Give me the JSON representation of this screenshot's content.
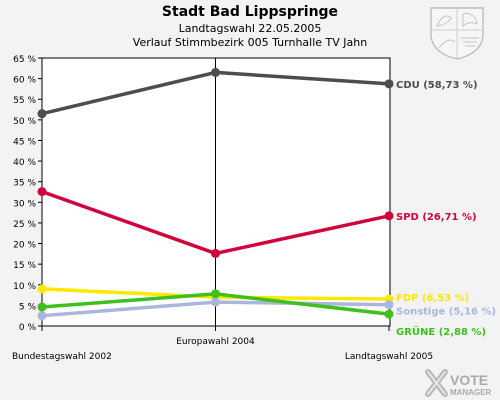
{
  "title": "Stadt Bad Lippspringe",
  "subtitle1": "Landtagswahl 22.05.2005",
  "subtitle2": "Verlauf Stimmbezirk 005 Turnhalle TV Jahn",
  "brand": {
    "line1": "VOTE",
    "line2": "MANAGER"
  },
  "chart_data": {
    "type": "line",
    "x": [
      "Bundestagswahl 2002",
      "Europawahl 2004",
      "Landtagswahl 2005"
    ],
    "ylim": [
      0,
      65
    ],
    "yticks": [
      0,
      5,
      10,
      15,
      20,
      25,
      30,
      35,
      40,
      45,
      50,
      55,
      60,
      65
    ],
    "ytick_labels": [
      "0 %",
      "5 %",
      "10 %",
      "15 %",
      "20 %",
      "25 %",
      "30 %",
      "35 %",
      "40 %",
      "45 %",
      "50 %",
      "55 %",
      "60 %",
      "65 %"
    ],
    "grid": false,
    "series": [
      {
        "name": "CDU",
        "color": "#4d4d4d",
        "values": [
          51.5,
          61.5,
          58.73
        ],
        "label": "CDU (58,73 %)"
      },
      {
        "name": "SPD",
        "color": "#d0043c",
        "values": [
          32.6,
          17.6,
          26.71
        ],
        "label": "SPD (26,71 %)"
      },
      {
        "name": "FDP",
        "color": "#ffe800",
        "values": [
          9.0,
          7.0,
          6.53
        ],
        "label": "FDP (6,53 %)"
      },
      {
        "name": "Sonstige",
        "color": "#aab6dd",
        "values": [
          2.5,
          5.8,
          5.16
        ],
        "label": "Sonstige (5,16 %)"
      },
      {
        "name": "GRÜNE",
        "color": "#3fc01e",
        "values": [
          4.6,
          7.8,
          2.88
        ],
        "label": "GRÜNE (2,88 %)"
      }
    ]
  }
}
